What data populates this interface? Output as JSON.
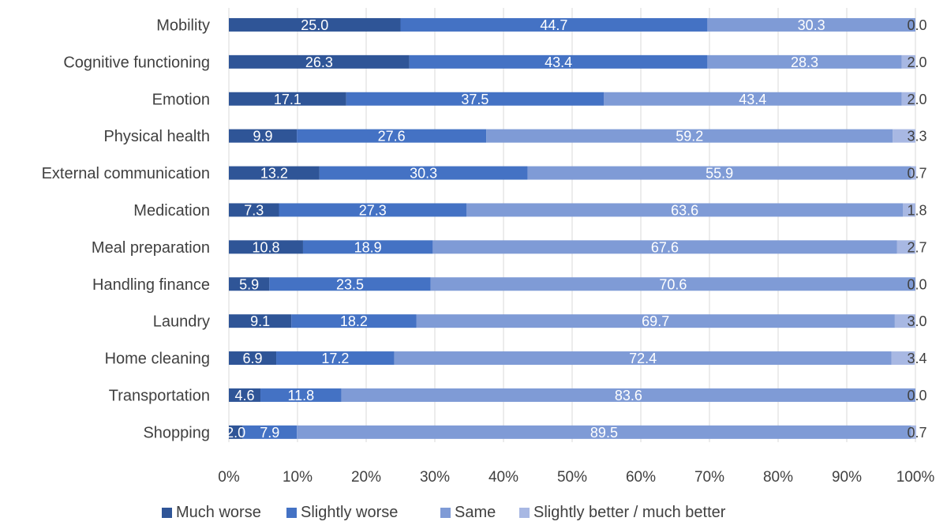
{
  "chart_data": {
    "type": "bar",
    "orientation": "horizontal",
    "stacked": true,
    "percent_stacked": true,
    "categories": [
      "Mobility",
      "Cognitive functioning",
      "Emotion",
      "Physical health",
      "External communication",
      "Medication",
      "Meal preparation",
      "Handling finance",
      "Laundry",
      "Home cleaning",
      "Transportation",
      "Shopping"
    ],
    "series": [
      {
        "name": "Much worse",
        "color": "#2f5597",
        "values": [
          25.0,
          26.3,
          17.1,
          9.9,
          13.2,
          7.3,
          10.8,
          5.9,
          9.1,
          6.9,
          4.6,
          2.0
        ]
      },
      {
        "name": "Slightly worse",
        "color": "#4472c4",
        "values": [
          44.7,
          43.4,
          37.5,
          27.6,
          30.3,
          27.3,
          18.9,
          23.5,
          18.2,
          17.2,
          11.8,
          7.9
        ]
      },
      {
        "name": "Same",
        "color": "#7f9bd6",
        "values": [
          30.3,
          28.3,
          43.4,
          59.2,
          55.9,
          63.6,
          67.6,
          70.6,
          69.7,
          72.4,
          83.6,
          89.5
        ]
      },
      {
        "name": "Slightly better / much better",
        "color": "#a8b8e3",
        "values": [
          0.0,
          2.0,
          2.0,
          3.3,
          0.7,
          1.8,
          2.7,
          0.0,
          3.0,
          3.4,
          0.0,
          0.7
        ]
      }
    ],
    "data_labels": [
      [
        "25.0",
        "26.3",
        "17.1",
        "9.9",
        "13.2",
        "7.3",
        "10.8",
        "5.9",
        "9.1",
        "6.9",
        "4.6",
        "2.0"
      ],
      [
        "44.7",
        "43.4",
        "37.5",
        "27.6",
        "30.3",
        "27.3",
        "18.9",
        "23.5",
        "18.2",
        "17.2",
        "11.8",
        "7.9"
      ],
      [
        "30.3",
        "28.3",
        "43.4",
        "59.2",
        "55.9",
        "63.6",
        "67.6",
        "70.6",
        "69.7",
        "72.4",
        "83.6",
        "89.5"
      ],
      [
        "0.0",
        "2.0",
        "2.0",
        "3.3",
        "0.7",
        "1.8",
        "2.7",
        "0.0",
        "3.0",
        "3.4",
        "0.0",
        "0.7"
      ]
    ],
    "x_ticks": [
      "0%",
      "10%",
      "20%",
      "30%",
      "40%",
      "50%",
      "60%",
      "70%",
      "80%",
      "90%",
      "100%"
    ],
    "xlim": [
      0,
      100
    ],
    "grid": "vertical",
    "legend_position": "bottom",
    "title": "",
    "xlabel": "",
    "ylabel": ""
  }
}
